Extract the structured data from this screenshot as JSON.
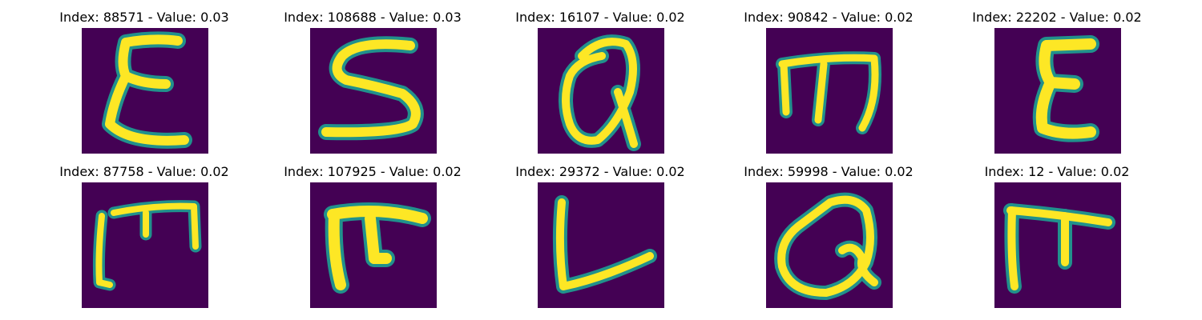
{
  "colors": {
    "background": "#440154",
    "stroke_core": "#fde725",
    "stroke_edge": "#21918c"
  },
  "panels": [
    {
      "title": "Index: 88571 - Value: 0.03",
      "glyph": "E-shape"
    },
    {
      "title": "Index: 108688 - Value: 0.03",
      "glyph": "S-shape"
    },
    {
      "title": "Index: 16107 - Value: 0.02",
      "glyph": "Q-shape"
    },
    {
      "title": "Index: 90842 - Value: 0.02",
      "glyph": "m-shape"
    },
    {
      "title": "Index: 22202 - Value: 0.02",
      "glyph": "E-shape"
    },
    {
      "title": "Index: 87758 - Value: 0.02",
      "glyph": "m-shape"
    },
    {
      "title": "Index: 107925 - Value: 0.02",
      "glyph": "m-shape"
    },
    {
      "title": "Index: 29372 - Value: 0.02",
      "glyph": "L-shape"
    },
    {
      "title": "Index: 59998 - Value: 0.02",
      "glyph": "Q-shape"
    },
    {
      "title": "Index: 12 - Value: 0.02",
      "glyph": "t-shape"
    }
  ]
}
